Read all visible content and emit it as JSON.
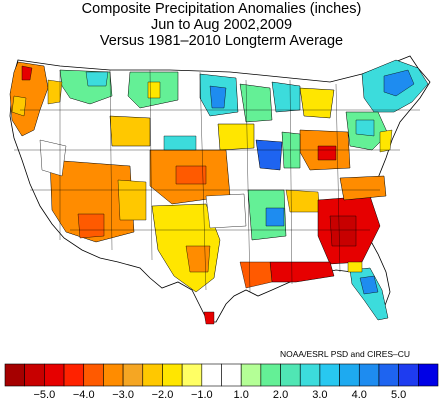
{
  "title": {
    "line1": "Composite Precipitation Anomalies (inches)",
    "line2": "Jun to Aug  2002,2009",
    "line3": "Versus 1981–2010 Longterm Average"
  },
  "credit": "NOAA/ESRL PSD and CIRES–CU",
  "colorbar": {
    "ticks": [
      "−5.0",
      "−4.0",
      "−3.0",
      "−2.0",
      "−1.0",
      "1.0",
      "2.0",
      "3.0",
      "4.0",
      "5.0"
    ],
    "colors": [
      "#a50000",
      "#c80000",
      "#e60000",
      "#ff2200",
      "#ff5a00",
      "#ff8c00",
      "#f5a623",
      "#ffc800",
      "#ffe600",
      "#ffff64",
      "#ffffff",
      "#ffffff",
      "#b4ff96",
      "#64f096",
      "#50e6b4",
      "#3cdcdc",
      "#28c8f0",
      "#1eaaf0",
      "#1e8cf0",
      "#1e64f0",
      "#1e3cf0",
      "#0000e6"
    ]
  },
  "map": {
    "description_colors": {
      "dry_strong": "#e60000",
      "dry": "#ff8c00",
      "dry_light": "#ffc800",
      "neutral": "#ffffff",
      "wet_light": "#64f096",
      "wet": "#3cdcdc",
      "wet_strong": "#1e64f0"
    }
  }
}
